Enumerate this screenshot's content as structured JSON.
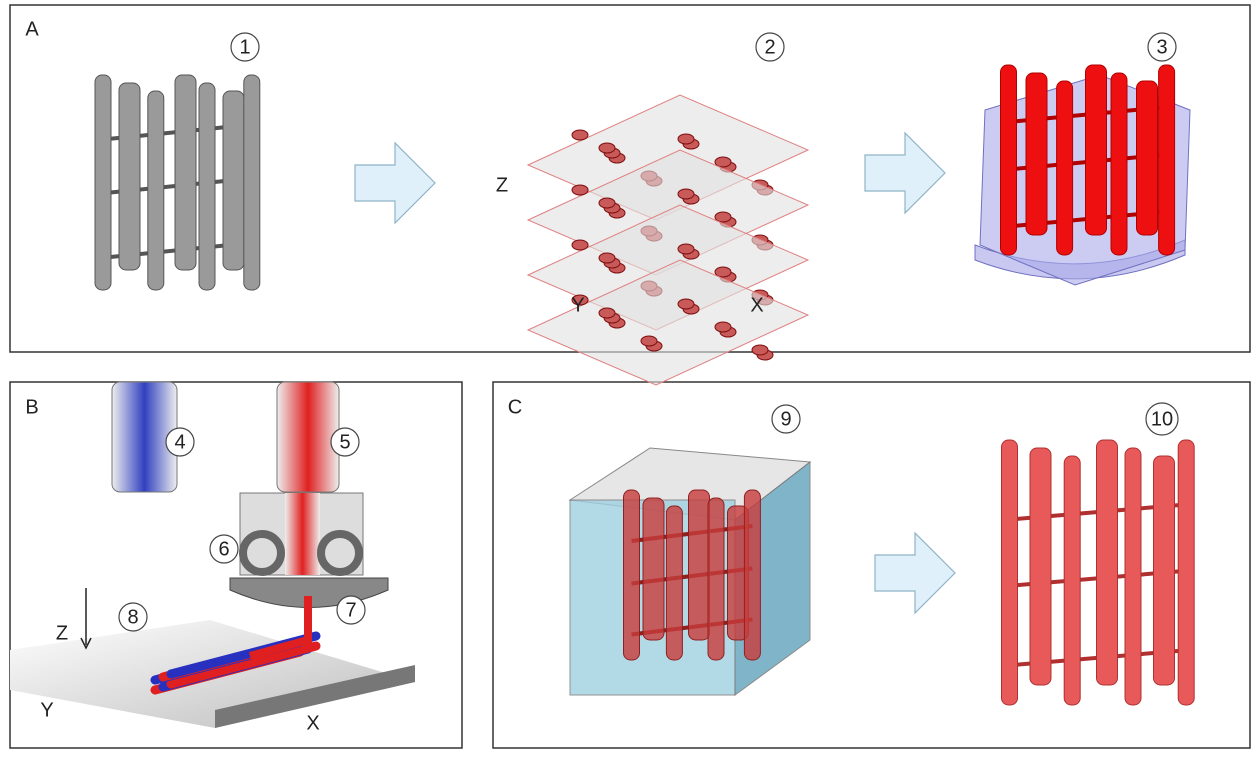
{
  "panels": [
    {
      "label": "A",
      "steps": [
        "1",
        "2",
        "3"
      ],
      "axes": {
        "z": "Z",
        "y": "Y",
        "x": "X"
      }
    },
    {
      "label": "B",
      "callouts": [
        "4",
        "5",
        "6",
        "7",
        "8"
      ],
      "axes": {
        "z": "Z",
        "y": "Y",
        "x": "X"
      }
    },
    {
      "label": "C",
      "callouts": [
        "9",
        "10"
      ]
    }
  ]
}
